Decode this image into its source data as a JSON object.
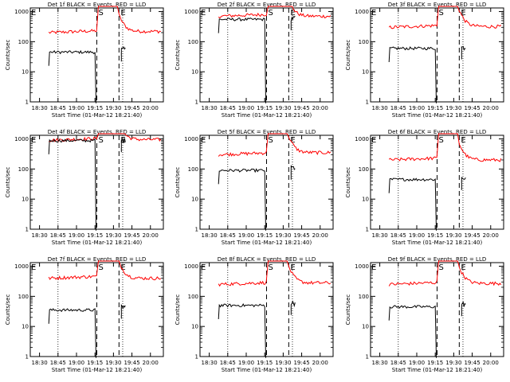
{
  "colors": {
    "events": "#000000",
    "lld": "#ff0000",
    "axis": "#000000"
  },
  "chart_data": [
    {
      "type": "line",
      "title": "Det 1f BLACK = Events, RED = LLD",
      "xlabel": "Start Time (01-Mar-12 18:21:40)",
      "ylabel": "Counts/sec",
      "yscale": "log",
      "ylim": [
        1,
        1000
      ],
      "x_ticks": [
        "18:30",
        "18:45",
        "19:00",
        "19:15",
        "19:30",
        "19:45",
        "20:00"
      ],
      "y_ticks": [
        "1",
        "10",
        "100",
        "1000"
      ],
      "markers": [
        {
          "label": "S",
          "at_tick": 3.1
        },
        {
          "label": "E",
          "at_tick": 4.3
        }
      ],
      "series": [
        {
          "color": "red",
          "level_before": 200,
          "level_after": 220,
          "peak": 1500
        },
        {
          "color": "black",
          "level_before": 45,
          "level_after": 55
        }
      ]
    },
    {
      "type": "line",
      "title": "Det 2f BLACK = Events, RED = LLD",
      "xlabel": "Start Time (01-Mar-12 18:21:40)",
      "ylabel": "Counts/sec",
      "yscale": "log",
      "ylim": [
        1,
        1000
      ],
      "x_ticks": [
        "18:30",
        "18:45",
        "19:00",
        "19:15",
        "19:30",
        "19:45",
        "20:00"
      ],
      "y_ticks": [
        "1",
        "10",
        "100",
        "1000"
      ],
      "markers": [
        {
          "label": "S",
          "at_tick": 3.1
        },
        {
          "label": "E",
          "at_tick": 4.3
        }
      ],
      "series": [
        {
          "color": "red",
          "level_before": 700,
          "level_after": 700,
          "peak": 3000
        },
        {
          "color": "black",
          "level_before": 550,
          "level_after": 600
        }
      ]
    },
    {
      "type": "line",
      "title": "Det 3f BLACK = Events, RED = LLD",
      "xlabel": "Start Time (01-Mar-12 18:21:40)",
      "ylabel": "Counts/sec",
      "yscale": "log",
      "ylim": [
        1,
        1000
      ],
      "x_ticks": [
        "18:30",
        "18:45",
        "19:00",
        "19:15",
        "19:30",
        "19:45",
        "20:00"
      ],
      "y_ticks": [
        "1",
        "10",
        "100",
        "1000"
      ],
      "markers": [
        {
          "label": "S",
          "at_tick": 3.1
        },
        {
          "label": "E",
          "at_tick": 4.3
        }
      ],
      "series": [
        {
          "color": "red",
          "level_before": 300,
          "level_after": 320,
          "peak": 1500
        },
        {
          "color": "black",
          "level_before": 60,
          "level_after": 65
        }
      ]
    },
    {
      "type": "line",
      "title": "Det 4f BLACK = Events, RED = LLD",
      "xlabel": "Start Time (01-Mar-12 18:21:40)",
      "ylabel": "Counts/sec",
      "yscale": "log",
      "ylim": [
        1,
        1000
      ],
      "x_ticks": [
        "18:30",
        "18:45",
        "19:00",
        "19:15",
        "19:30",
        "19:45",
        "20:00"
      ],
      "y_ticks": [
        "1",
        "10",
        "100",
        "1000"
      ],
      "markers": [
        {
          "label": "S",
          "at_tick": 3.1
        },
        {
          "label": "E",
          "at_tick": 4.3
        }
      ],
      "series": [
        {
          "color": "red",
          "level_before": 900,
          "level_after": 950,
          "peak": 3000
        },
        {
          "color": "black",
          "level_before": 880,
          "level_after": 900
        }
      ]
    },
    {
      "type": "line",
      "title": "Det 5f BLACK = Events, RED = LLD",
      "xlabel": "Start Time (01-Mar-12 18:21:40)",
      "ylabel": "Counts/sec",
      "yscale": "log",
      "ylim": [
        1,
        1000
      ],
      "x_ticks": [
        "18:30",
        "18:45",
        "19:00",
        "19:15",
        "19:30",
        "19:45",
        "20:00"
      ],
      "y_ticks": [
        "1",
        "10",
        "100",
        "1000"
      ],
      "markers": [
        {
          "label": "S",
          "at_tick": 3.1
        },
        {
          "label": "E",
          "at_tick": 4.3
        }
      ],
      "series": [
        {
          "color": "red",
          "level_before": 300,
          "level_after": 350,
          "peak": 2000
        },
        {
          "color": "black",
          "level_before": 90,
          "level_after": 110
        }
      ]
    },
    {
      "type": "line",
      "title": "Det 6f BLACK = Events, RED = LLD",
      "xlabel": "Start Time (01-Mar-12 18:21:40)",
      "ylabel": "Counts/sec",
      "yscale": "log",
      "ylim": [
        1,
        1000
      ],
      "x_ticks": [
        "18:30",
        "18:45",
        "19:00",
        "19:15",
        "19:30",
        "19:45",
        "20:00"
      ],
      "y_ticks": [
        "1",
        "10",
        "100",
        "1000"
      ],
      "markers": [
        {
          "label": "S",
          "at_tick": 3.1
        },
        {
          "label": "E",
          "at_tick": 4.3
        }
      ],
      "series": [
        {
          "color": "red",
          "level_before": 200,
          "level_after": 200,
          "peak": 1500
        },
        {
          "color": "black",
          "level_before": 45,
          "level_after": 50
        }
      ]
    },
    {
      "type": "line",
      "title": "Det 7f BLACK = Events, RED = LLD",
      "xlabel": "Start Time (01-Mar-12 18:21:40)",
      "ylabel": "Counts/sec",
      "yscale": "log",
      "ylim": [
        1,
        1000
      ],
      "x_ticks": [
        "18:30",
        "18:45",
        "19:00",
        "19:15",
        "19:30",
        "19:45",
        "20:00"
      ],
      "y_ticks": [
        "1",
        "10",
        "100",
        "1000"
      ],
      "markers": [
        {
          "label": "S",
          "at_tick": 3.1
        },
        {
          "label": "E",
          "at_tick": 4.3
        }
      ],
      "series": [
        {
          "color": "red",
          "level_before": 400,
          "level_after": 400,
          "peak": 2000
        },
        {
          "color": "black",
          "level_before": 35,
          "level_after": 45
        }
      ]
    },
    {
      "type": "line",
      "title": "Det 8f BLACK = Events, RED = LLD",
      "xlabel": "Start Time (01-Mar-12 18:21:40)",
      "ylabel": "Counts/sec",
      "yscale": "log",
      "ylim": [
        1,
        1000
      ],
      "x_ticks": [
        "18:30",
        "18:45",
        "19:00",
        "19:15",
        "19:30",
        "19:45",
        "20:00"
      ],
      "y_ticks": [
        "1",
        "10",
        "100",
        "1000"
      ],
      "markers": [
        {
          "label": "S",
          "at_tick": 3.1
        },
        {
          "label": "E",
          "at_tick": 4.3
        }
      ],
      "series": [
        {
          "color": "red",
          "level_before": 250,
          "level_after": 280,
          "peak": 2000
        },
        {
          "color": "black",
          "level_before": 50,
          "level_after": 60
        }
      ]
    },
    {
      "type": "line",
      "title": "Det 9f BLACK = Events, RED = LLD",
      "xlabel": "Start Time (01-Mar-12 18:21:40)",
      "ylabel": "Counts/sec",
      "yscale": "log",
      "ylim": [
        1,
        1000
      ],
      "x_ticks": [
        "18:30",
        "18:45",
        "19:00",
        "19:15",
        "19:30",
        "19:45",
        "20:00"
      ],
      "y_ticks": [
        "1",
        "10",
        "100",
        "1000"
      ],
      "markers": [
        {
          "label": "S",
          "at_tick": 3.1
        },
        {
          "label": "E",
          "at_tick": 4.3
        }
      ],
      "series": [
        {
          "color": "red",
          "level_before": 250,
          "level_after": 270,
          "peak": 1500
        },
        {
          "color": "black",
          "level_before": 45,
          "level_after": 55
        }
      ]
    }
  ]
}
